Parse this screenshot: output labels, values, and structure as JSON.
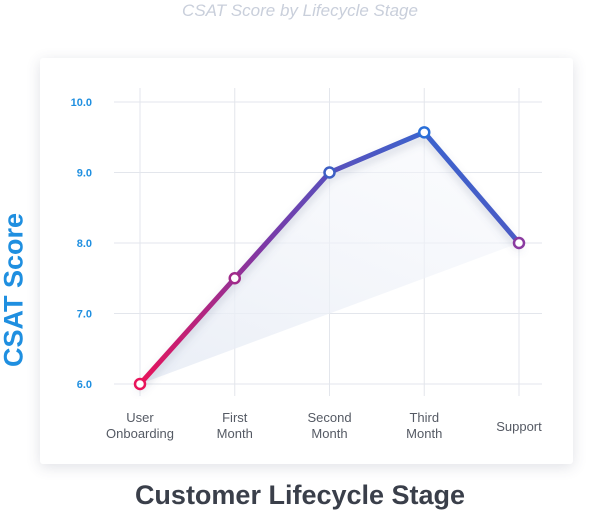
{
  "chart_data": {
    "type": "line",
    "title": "CSAT Score by Lifecycle Stage",
    "xlabel": "Customer Lifecycle Stage",
    "ylabel": "CSAT Score",
    "categories": [
      [
        "User",
        "Onboarding"
      ],
      [
        "First",
        "Month"
      ],
      [
        "Second",
        "Month"
      ],
      [
        "Third",
        "Month"
      ],
      [
        "Support"
      ]
    ],
    "values": [
      6.0,
      7.5,
      9.0,
      9.57,
      8.0
    ],
    "yticks": [
      "10.0",
      "9.0",
      "8.0",
      "7.0",
      "6.0"
    ],
    "ylim": [
      6.0,
      10.0
    ],
    "grid": true,
    "colors": {
      "line_start": "#e8135a",
      "line_mid": "#7a3aa8",
      "line_end": "#2a6fd8",
      "axis_text": "#1f8fe0"
    }
  }
}
